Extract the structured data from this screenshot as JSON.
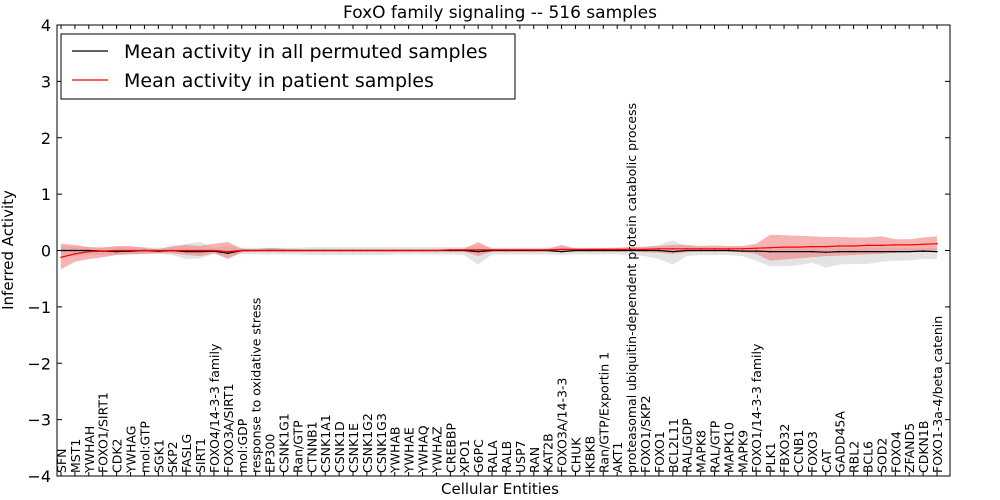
{
  "chart_data": {
    "type": "line",
    "title": "FoxO family signaling -- 516 samples",
    "xlabel": "Cellular Entities",
    "ylabel": "Inferred Activity",
    "ylim": [
      -4,
      4
    ],
    "yticks": [
      "4",
      "3",
      "2",
      "1",
      "0",
      "−1",
      "−2",
      "−3",
      "−4"
    ],
    "ytick_values": [
      4,
      3,
      2,
      1,
      0,
      -1,
      -2,
      -3,
      -4
    ],
    "legend_position": "top-left",
    "categories": [
      "SFN",
      "MST1",
      "YWHAH",
      "FOXO1/SIRT1",
      "CDK2",
      "YWHAG",
      "mol:GTP",
      "SGK1",
      "SKP2",
      "FASLG",
      "SIRT1",
      "FOXO4/14-3-3 family",
      "FOXO3A/SIRT1",
      "mol:GDP",
      "response to oxidative stress",
      "EP300",
      "CSNK1G1",
      "Ran/GTP",
      "CTNNB1",
      "CSNK1A1",
      "CSNK1D",
      "CSNK1E",
      "CSNK1G2",
      "CSNK1G3",
      "YWHAB",
      "YWHAE",
      "YWHAQ",
      "YWHAZ",
      "CREBBP",
      "XPO1",
      "G6PC",
      "RALA",
      "RALB",
      "USP7",
      "RAN",
      "KAT2B",
      "FOXO3A/14-3-3",
      "CHUK",
      "IKBKB",
      "Ran/GTP/Exportin 1",
      "AKT1",
      "proteasomal ubiquitin-dependent protein catabolic process",
      "FOXO1/SKP2",
      "FOXO1",
      "BCL2L11",
      "RAL/GDP",
      "MAPK8",
      "RAL/GTP",
      "MAPK10",
      "MAPK9",
      "FOXO1/14-3-3 family",
      "PLK1",
      "FBXO32",
      "CCNB1",
      "FOXO3",
      "CAT",
      "GADD45A",
      "RBL2",
      "BCL6",
      "SOD2",
      "FOXO4",
      "ZFAND5",
      "CDKN1B",
      "FOXO1-3a-4/beta catenin"
    ],
    "series": [
      {
        "name": "Mean activity in all permuted samples",
        "color": "#000000",
        "band_color": "#d9d9d9",
        "values": [
          0,
          0,
          0,
          -0.01,
          -0.02,
          -0.01,
          0,
          -0.01,
          0,
          -0.02,
          -0.02,
          -0.01,
          -0.05,
          0,
          0,
          0,
          0,
          0,
          0,
          0,
          0,
          0,
          0,
          0,
          0,
          0,
          0,
          0,
          0,
          0,
          -0.02,
          0,
          0,
          0,
          0,
          0,
          -0.02,
          0,
          0,
          0,
          0,
          0,
          0,
          0,
          -0.02,
          0,
          0,
          0,
          0,
          -0.01,
          -0.01,
          -0.02,
          -0.02,
          -0.02,
          -0.02,
          -0.03,
          -0.02,
          -0.02,
          -0.02,
          -0.02,
          -0.02,
          -0.02,
          -0.01,
          -0.02
        ],
        "upper": [
          0.08,
          0.07,
          0.06,
          0.06,
          0.06,
          0.06,
          0.06,
          0.05,
          0.06,
          0.12,
          0.15,
          0.05,
          0.08,
          0.05,
          0.05,
          0.05,
          0.05,
          0.05,
          0.06,
          0.06,
          0.06,
          0.06,
          0.06,
          0.06,
          0.06,
          0.06,
          0.06,
          0.06,
          0.06,
          0.06,
          0.1,
          0.05,
          0.05,
          0.05,
          0.05,
          0.05,
          0.06,
          0.05,
          0.05,
          0.05,
          0.05,
          0.06,
          0.06,
          0.1,
          0.18,
          0.08,
          0.06,
          0.06,
          0.06,
          0.06,
          0.06,
          0.05,
          0.05,
          0.05,
          0.05,
          0.05,
          0.05,
          0.05,
          0.05,
          0.05,
          0.05,
          0.05,
          0.05,
          0.05
        ],
        "lower": [
          -0.08,
          -0.1,
          -0.08,
          -0.08,
          -0.08,
          -0.08,
          -0.06,
          -0.06,
          -0.08,
          -0.15,
          -0.14,
          -0.06,
          -0.12,
          -0.06,
          -0.07,
          -0.07,
          -0.07,
          -0.07,
          -0.08,
          -0.08,
          -0.08,
          -0.08,
          -0.08,
          -0.08,
          -0.07,
          -0.07,
          -0.07,
          -0.07,
          -0.07,
          -0.08,
          -0.25,
          -0.07,
          -0.07,
          -0.07,
          -0.07,
          -0.07,
          -0.08,
          -0.07,
          -0.07,
          -0.07,
          -0.07,
          -0.08,
          -0.1,
          -0.15,
          -0.25,
          -0.1,
          -0.08,
          -0.08,
          -0.08,
          -0.1,
          -0.18,
          -0.28,
          -0.28,
          -0.26,
          -0.22,
          -0.3,
          -0.25,
          -0.24,
          -0.24,
          -0.2,
          -0.18,
          -0.18,
          -0.15,
          -0.15
        ]
      },
      {
        "name": "Mean activity in patient samples",
        "color": "#ff0000",
        "band_color": "#f08080",
        "values": [
          -0.12,
          -0.06,
          -0.02,
          -0.01,
          0,
          0,
          0,
          0,
          0,
          0,
          0,
          0,
          -0.02,
          0,
          0,
          0,
          0,
          0,
          0,
          0,
          0,
          0,
          0,
          0,
          0,
          0,
          0,
          0,
          0.01,
          0.01,
          0.01,
          0.01,
          0.01,
          0.01,
          0.01,
          0.01,
          0.02,
          0.02,
          0.02,
          0.02,
          0.02,
          0.02,
          0.02,
          0.03,
          0.03,
          0.03,
          0.03,
          0.03,
          0.03,
          0.03,
          0.04,
          0.05,
          0.06,
          0.06,
          0.07,
          0.07,
          0.08,
          0.08,
          0.09,
          0.09,
          0.1,
          0.1,
          0.11,
          0.12
        ],
        "upper": [
          0.12,
          0.1,
          0.06,
          0.05,
          0.08,
          0.08,
          0.05,
          0.02,
          0.08,
          0.1,
          0.08,
          0.12,
          0.15,
          0.03,
          0.02,
          0.05,
          0.03,
          0.02,
          0.02,
          0.02,
          0.02,
          0.02,
          0.02,
          0.02,
          0.02,
          0.02,
          0.02,
          0.02,
          0.03,
          0.03,
          0.15,
          0.03,
          0.03,
          0.03,
          0.03,
          0.03,
          0.1,
          0.03,
          0.04,
          0.04,
          0.05,
          0.06,
          0.07,
          0.08,
          0.1,
          0.1,
          0.08,
          0.09,
          0.08,
          0.08,
          0.12,
          0.28,
          0.27,
          0.26,
          0.25,
          0.24,
          0.24,
          0.23,
          0.23,
          0.25,
          0.2,
          0.2,
          0.23,
          0.25
        ],
        "lower": [
          -0.33,
          -0.2,
          -0.15,
          -0.12,
          -0.08,
          -0.06,
          -0.06,
          -0.05,
          -0.05,
          -0.08,
          -0.1,
          -0.05,
          -0.15,
          -0.03,
          -0.02,
          -0.02,
          -0.02,
          -0.02,
          -0.02,
          -0.02,
          -0.02,
          -0.02,
          -0.02,
          -0.02,
          -0.02,
          -0.02,
          -0.02,
          -0.02,
          -0.02,
          -0.02,
          -0.1,
          -0.02,
          -0.02,
          -0.02,
          -0.02,
          -0.02,
          -0.03,
          -0.02,
          -0.02,
          -0.02,
          -0.02,
          -0.02,
          -0.03,
          -0.04,
          -0.06,
          -0.03,
          -0.02,
          -0.02,
          -0.02,
          -0.03,
          -0.06,
          -0.18,
          -0.16,
          -0.14,
          -0.12,
          -0.1,
          -0.09,
          -0.08,
          -0.07,
          -0.06,
          -0.04,
          -0.03,
          -0.02,
          0.0
        ]
      }
    ]
  }
}
